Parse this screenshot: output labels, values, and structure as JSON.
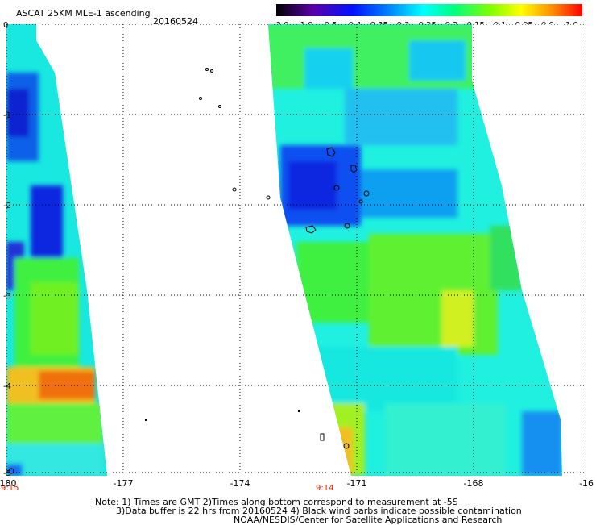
{
  "header": {
    "title": "ASCAT 25KM MLE-1 ascending",
    "date": "20160524"
  },
  "colorbar": {
    "ticks": [
      "-3.0",
      "-1.0",
      "-0.5",
      "-0.4",
      "-0.35",
      "-0.3",
      "-0.25",
      "-0.2",
      "-0.15",
      "-0.1",
      "-0.05",
      "0.0",
      "1.0"
    ],
    "colors": [
      "#000000",
      "#5a00a8",
      "#0010ff",
      "#0090ff",
      "#00ffff",
      "#00ff80",
      "#a0ff00",
      "#ffff00",
      "#ff9000",
      "#ff0000"
    ]
  },
  "map": {
    "x_ticks": [
      "-180",
      "-177",
      "-174",
      "-171",
      "-168",
      "-16"
    ],
    "y_labels": [
      "0",
      "-1",
      "-2",
      "-3",
      "-4",
      "-5"
    ],
    "times": [
      "9:15",
      "9:14"
    ],
    "grid": "dotted",
    "swaths": [
      "left partial swath",
      "right swath"
    ]
  },
  "footer": {
    "line1": "Note: 1) Times are GMT 2)Times along bottom correspond to measurement at -5S",
    "line2": "3)Data buffer is 22 hrs from 20160524 4) Black wind barbs indicate possible contamination",
    "line3": "NOAA/NESDIS/Center for Satellite Applications and Research"
  }
}
